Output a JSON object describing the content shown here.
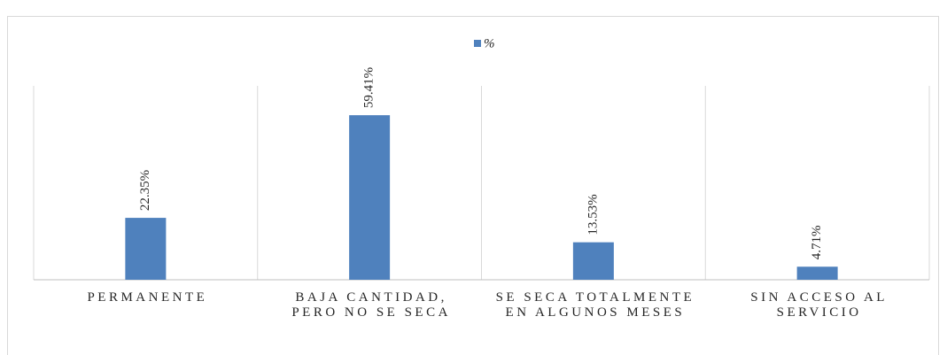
{
  "chart_data": {
    "type": "bar",
    "categories": [
      "PERMANENTE",
      "BAJA CANTIDAD, PERO NO SE SECA",
      "SE SECA TOTALMENTE EN ALGUNOS MESES",
      "SIN ACCESO AL SERVICIO"
    ],
    "series": [
      {
        "name": "%",
        "color": "#4f81bd",
        "values": [
          22.35,
          59.41,
          13.53,
          4.71
        ],
        "value_labels": [
          "22.35%",
          "59.41%",
          "13.53%",
          "4.71%"
        ]
      }
    ],
    "ylim": [
      0,
      70
    ],
    "legend": "top"
  }
}
